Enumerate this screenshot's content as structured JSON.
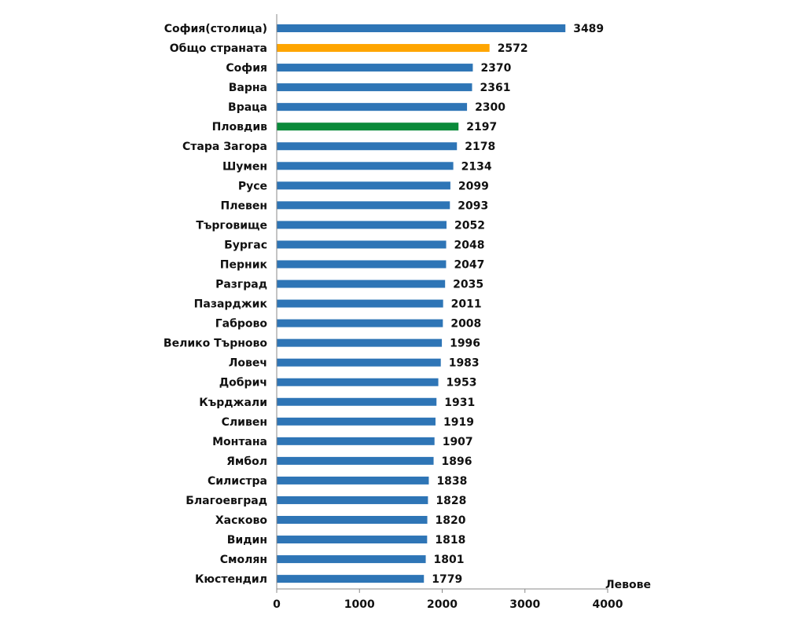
{
  "chart_data": {
    "type": "bar",
    "orientation": "horizontal",
    "xlabel": "",
    "unit_label": "Левове",
    "xlim": [
      0,
      4000
    ],
    "xticks": [
      0,
      1000,
      2000,
      3000,
      4000
    ],
    "grid": false,
    "default_color": "#2E75B6",
    "categories": [
      {
        "name": "София(столица)",
        "value": 3489,
        "color": "#2E75B6"
      },
      {
        "name": "Общо страната",
        "value": 2572,
        "color": "#FFA500"
      },
      {
        "name": "София",
        "value": 2370,
        "color": "#2E75B6"
      },
      {
        "name": "Варна",
        "value": 2361,
        "color": "#2E75B6"
      },
      {
        "name": "Враца",
        "value": 2300,
        "color": "#2E75B6"
      },
      {
        "name": "Пловдив",
        "value": 2197,
        "color": "#0A8A3A"
      },
      {
        "name": "Стара Загора",
        "value": 2178,
        "color": "#2E75B6"
      },
      {
        "name": "Шумен",
        "value": 2134,
        "color": "#2E75B6"
      },
      {
        "name": "Русе",
        "value": 2099,
        "color": "#2E75B6"
      },
      {
        "name": "Плевен",
        "value": 2093,
        "color": "#2E75B6"
      },
      {
        "name": "Търговище",
        "value": 2052,
        "color": "#2E75B6"
      },
      {
        "name": "Бургас",
        "value": 2048,
        "color": "#2E75B6"
      },
      {
        "name": "Перник",
        "value": 2047,
        "color": "#2E75B6"
      },
      {
        "name": "Разград",
        "value": 2035,
        "color": "#2E75B6"
      },
      {
        "name": "Пазарджик",
        "value": 2011,
        "color": "#2E75B6"
      },
      {
        "name": "Габрово",
        "value": 2008,
        "color": "#2E75B6"
      },
      {
        "name": "Велико Търново",
        "value": 1996,
        "color": "#2E75B6"
      },
      {
        "name": "Ловеч",
        "value": 1983,
        "color": "#2E75B6"
      },
      {
        "name": "Добрич",
        "value": 1953,
        "color": "#2E75B6"
      },
      {
        "name": "Кърджали",
        "value": 1931,
        "color": "#2E75B6"
      },
      {
        "name": "Сливен",
        "value": 1919,
        "color": "#2E75B6"
      },
      {
        "name": "Монтана",
        "value": 1907,
        "color": "#2E75B6"
      },
      {
        "name": "Ямбол",
        "value": 1896,
        "color": "#2E75B6"
      },
      {
        "name": "Силистра",
        "value": 1838,
        "color": "#2E75B6"
      },
      {
        "name": "Благоевград",
        "value": 1828,
        "color": "#2E75B6"
      },
      {
        "name": "Хасково",
        "value": 1820,
        "color": "#2E75B6"
      },
      {
        "name": "Видин",
        "value": 1818,
        "color": "#2E75B6"
      },
      {
        "name": "Смолян",
        "value": 1801,
        "color": "#2E75B6"
      },
      {
        "name": "Кюстендил",
        "value": 1779,
        "color": "#2E75B6"
      }
    ]
  }
}
